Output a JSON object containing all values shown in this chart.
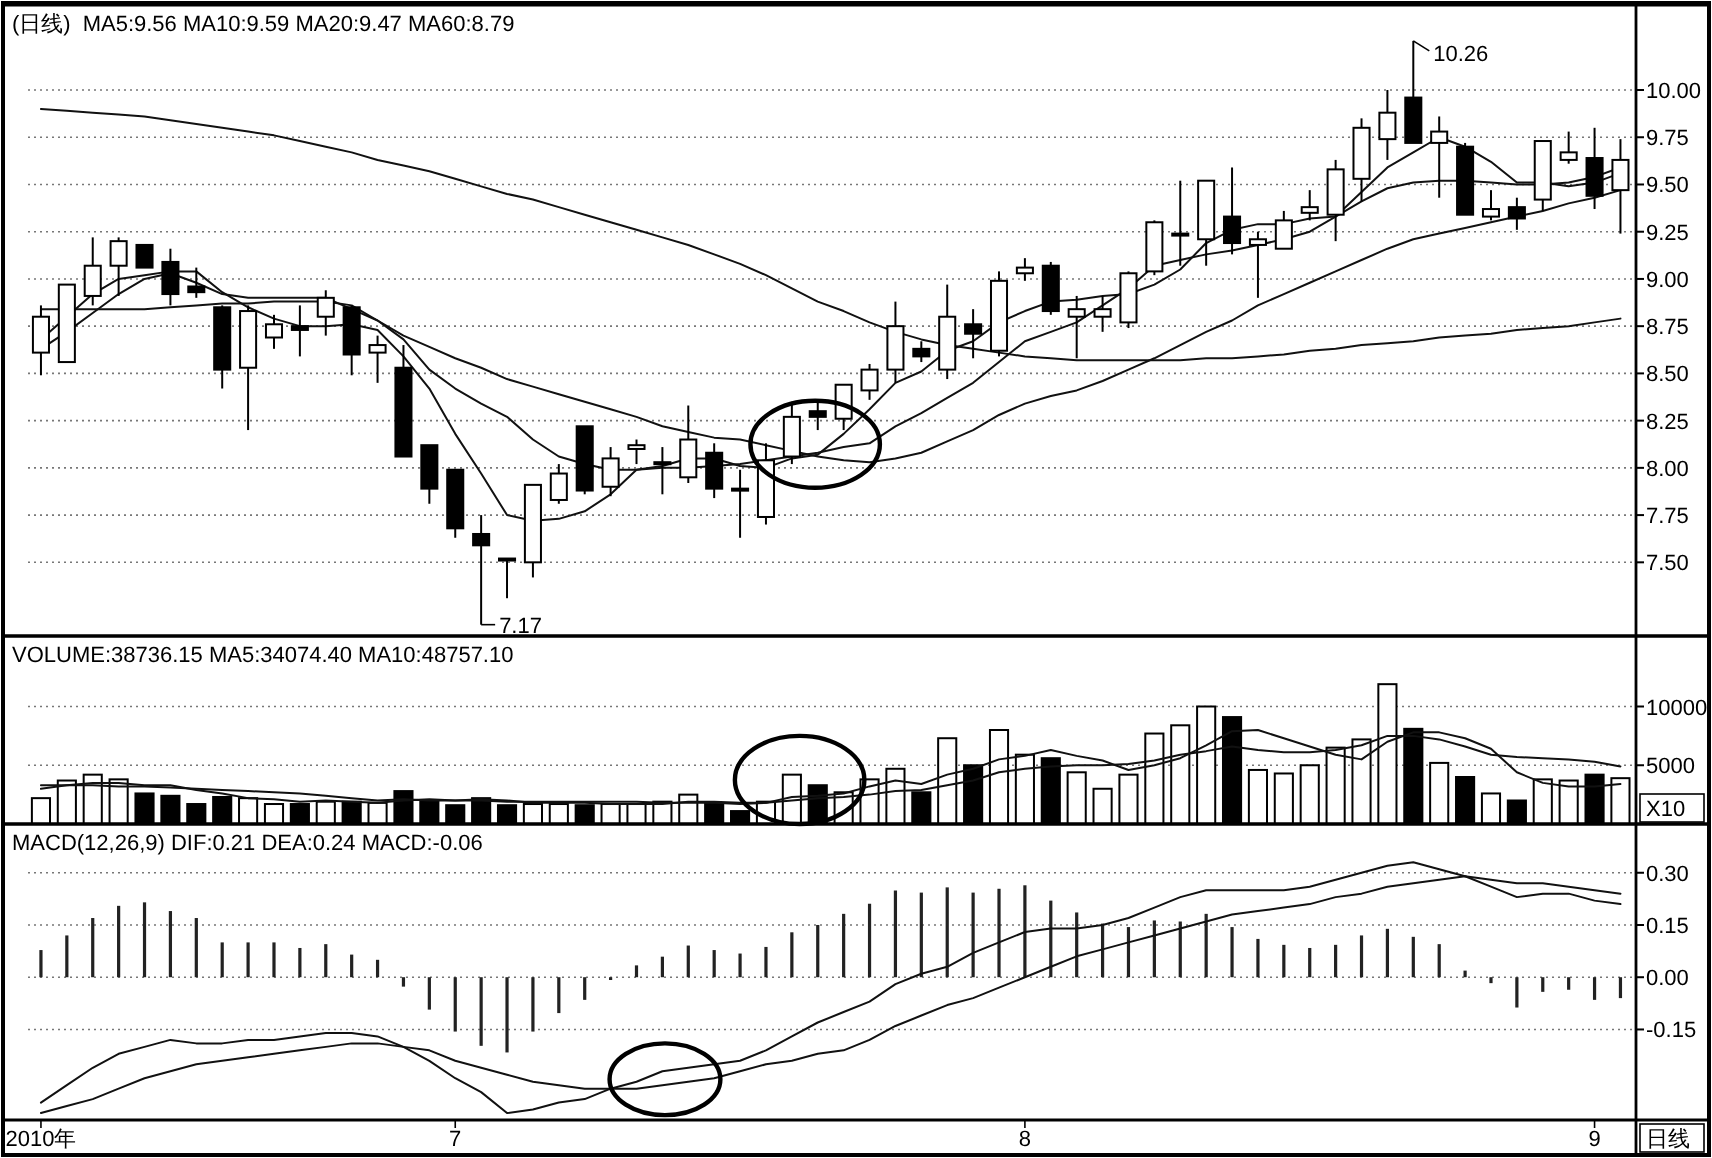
{
  "chart_data": [
    {
      "type": "candlestick",
      "title": "(日线)",
      "subtitle": "MA5:9.56 MA10:9.59 MA20:9.47 MA60:8.79",
      "color": "#000000",
      "categories": [
        null,
        null,
        null,
        null,
        null,
        null,
        null,
        null,
        null,
        null,
        null,
        null,
        null,
        null,
        null,
        null,
        null,
        null,
        null,
        null,
        null,
        null,
        null,
        null,
        null,
        null,
        null,
        null,
        null,
        null,
        null,
        null,
        null,
        null,
        null,
        null,
        null,
        null,
        null,
        null,
        null,
        null,
        null,
        null,
        null,
        null,
        null,
        null,
        null,
        null,
        null,
        null,
        null,
        null,
        null,
        null,
        null,
        null,
        null,
        null,
        null,
        null
      ],
      "ohlc": [
        [
          8.61,
          8.86,
          8.49,
          8.8
        ],
        [
          8.56,
          8.97,
          8.56,
          8.97
        ],
        [
          8.91,
          9.22,
          8.86,
          9.07
        ],
        [
          9.07,
          9.22,
          8.91,
          9.2
        ],
        [
          9.18,
          9.18,
          9.06,
          9.06
        ],
        [
          9.09,
          9.16,
          8.86,
          8.92
        ],
        [
          8.96,
          9.06,
          8.9,
          8.93
        ],
        [
          8.85,
          8.86,
          8.42,
          8.52
        ],
        [
          8.53,
          8.86,
          8.2,
          8.83
        ],
        [
          8.69,
          8.81,
          8.63,
          8.76
        ],
        [
          8.75,
          8.86,
          8.59,
          8.73
        ],
        [
          8.8,
          8.94,
          8.7,
          8.9
        ],
        [
          8.85,
          8.86,
          8.49,
          8.6
        ],
        [
          8.61,
          8.7,
          8.45,
          8.65
        ],
        [
          8.53,
          8.65,
          8.06,
          8.06
        ],
        [
          8.12,
          8.12,
          7.81,
          7.89
        ],
        [
          7.99,
          7.99,
          7.63,
          7.68
        ],
        [
          7.65,
          7.75,
          7.17,
          7.59
        ],
        [
          7.52,
          7.52,
          7.31,
          7.51
        ],
        [
          7.5,
          7.91,
          7.42,
          7.91
        ],
        [
          7.83,
          8.02,
          7.81,
          7.97
        ],
        [
          8.22,
          8.22,
          7.86,
          7.88
        ],
        [
          7.9,
          8.11,
          7.85,
          8.05
        ],
        [
          8.1,
          8.15,
          8.02,
          8.12
        ],
        [
          8.02,
          8.11,
          7.86,
          8.03
        ],
        [
          7.95,
          8.33,
          7.92,
          8.15
        ],
        [
          8.08,
          8.13,
          7.84,
          7.89
        ],
        [
          7.89,
          7.99,
          7.63,
          7.88
        ],
        [
          7.74,
          8.13,
          7.7,
          8.04
        ],
        [
          8.06,
          8.35,
          8.02,
          8.27
        ],
        [
          8.3,
          8.36,
          8.2,
          8.27
        ],
        [
          8.26,
          8.44,
          8.2,
          8.44
        ],
        [
          8.41,
          8.55,
          8.36,
          8.52
        ],
        [
          8.52,
          8.88,
          8.45,
          8.75
        ],
        [
          8.63,
          8.67,
          8.56,
          8.59
        ],
        [
          8.52,
          8.97,
          8.47,
          8.8
        ],
        [
          8.76,
          8.84,
          8.58,
          8.71
        ],
        [
          8.62,
          9.04,
          8.59,
          8.99
        ],
        [
          9.03,
          9.11,
          8.99,
          9.06
        ],
        [
          9.07,
          9.09,
          8.81,
          8.83
        ],
        [
          8.8,
          8.91,
          8.58,
          8.84
        ],
        [
          8.8,
          8.91,
          8.72,
          8.84
        ],
        [
          8.77,
          9.04,
          8.74,
          9.03
        ],
        [
          9.04,
          9.31,
          9.02,
          9.3
        ],
        [
          9.24,
          9.52,
          9.07,
          9.24
        ],
        [
          9.21,
          9.52,
          9.07,
          9.52
        ],
        [
          9.33,
          9.59,
          9.13,
          9.19
        ],
        [
          9.18,
          9.25,
          8.9,
          9.21
        ],
        [
          9.16,
          9.36,
          9.16,
          9.31
        ],
        [
          9.35,
          9.47,
          9.31,
          9.38
        ],
        [
          9.34,
          9.63,
          9.2,
          9.58
        ],
        [
          9.53,
          9.85,
          9.41,
          9.8
        ],
        [
          9.74,
          10.0,
          9.63,
          9.88
        ],
        [
          9.96,
          10.26,
          9.72,
          9.72
        ],
        [
          9.72,
          9.86,
          9.43,
          9.78
        ],
        [
          9.7,
          9.72,
          9.34,
          9.34
        ],
        [
          9.33,
          9.47,
          9.31,
          9.37
        ],
        [
          9.38,
          9.43,
          9.26,
          9.32
        ],
        [
          9.42,
          9.73,
          9.36,
          9.73
        ],
        [
          9.63,
          9.78,
          9.61,
          9.67
        ],
        [
          9.64,
          9.8,
          9.37,
          9.44
        ],
        [
          9.47,
          9.74,
          9.24,
          9.63
        ]
      ],
      "series": [
        {
          "type": "line",
          "color": "#111111",
          "values": [
            8.68,
            8.8,
            8.92,
            9.0,
            9.02,
            9.04,
            9.04,
            8.93,
            8.85,
            8.79,
            8.75,
            8.75,
            8.76,
            8.73,
            8.59,
            8.42,
            8.18,
            7.97,
            7.75,
            7.72,
            7.73,
            7.77,
            7.86,
            7.99,
            8.01,
            8.05,
            8.05,
            8.01,
            8.0,
            8.05,
            8.07,
            8.18,
            8.31,
            8.45,
            8.51,
            8.62,
            8.67,
            8.77,
            8.83,
            8.88,
            8.89,
            8.91,
            8.92,
            8.97,
            9.05,
            9.19,
            9.26,
            9.29,
            9.29,
            9.32,
            9.33,
            9.46,
            9.59,
            9.67,
            9.75,
            9.7,
            9.62,
            9.51,
            9.51,
            9.49,
            9.51,
            9.56
          ]
        },
        {
          "type": "line",
          "color": "#111111",
          "values": [
            8.63,
            8.72,
            8.82,
            8.92,
            9.0,
            9.03,
            8.98,
            8.92,
            8.9,
            8.9,
            8.9,
            8.9,
            8.84,
            8.78,
            8.68,
            8.52,
            8.42,
            8.34,
            8.27,
            8.15,
            8.06,
            8.02,
            7.99,
            7.99,
            8.0,
            8.0,
            8.01,
            8.02,
            8.04,
            8.06,
            8.08,
            8.11,
            8.13,
            8.22,
            8.29,
            8.37,
            8.45,
            8.56,
            8.67,
            8.72,
            8.77,
            8.86,
            8.95,
            9.07,
            9.1,
            9.13,
            9.15,
            9.18,
            9.21,
            9.25,
            9.33,
            9.41,
            9.48,
            9.51,
            9.52,
            9.52,
            9.51,
            9.5,
            9.5,
            9.51,
            9.54,
            9.59
          ]
        },
        {
          "type": "line",
          "color": "#111111",
          "values": [
            8.84,
            8.84,
            8.84,
            8.84,
            8.84,
            8.85,
            8.86,
            8.87,
            8.87,
            8.88,
            8.88,
            8.88,
            8.86,
            8.78,
            8.7,
            8.64,
            8.58,
            8.53,
            8.47,
            8.43,
            8.39,
            8.35,
            8.31,
            8.27,
            8.22,
            8.19,
            8.16,
            8.15,
            8.12,
            8.09,
            8.06,
            8.04,
            8.03,
            8.05,
            8.08,
            8.14,
            8.2,
            8.28,
            8.34,
            8.38,
            8.41,
            8.46,
            8.52,
            8.58,
            8.65,
            8.72,
            8.78,
            8.86,
            8.92,
            8.98,
            9.04,
            9.1,
            9.16,
            9.21,
            9.24,
            9.27,
            9.3,
            9.33,
            9.36,
            9.4,
            9.43,
            9.47
          ]
        },
        {
          "type": "line",
          "color": "#111111",
          "values": [
            9.9,
            9.89,
            9.88,
            9.87,
            9.86,
            9.84,
            9.82,
            9.8,
            9.78,
            9.76,
            9.73,
            9.7,
            9.67,
            9.63,
            9.6,
            9.57,
            9.53,
            9.49,
            9.45,
            9.42,
            9.38,
            9.34,
            9.3,
            9.26,
            9.22,
            9.18,
            9.13,
            9.08,
            9.02,
            8.95,
            8.88,
            8.83,
            8.77,
            8.72,
            8.68,
            8.65,
            8.63,
            8.61,
            8.59,
            8.58,
            8.57,
            8.57,
            8.57,
            8.57,
            8.57,
            8.58,
            8.58,
            8.59,
            8.6,
            8.62,
            8.63,
            8.65,
            8.66,
            8.67,
            8.69,
            8.7,
            8.71,
            8.73,
            8.74,
            8.75,
            8.77,
            8.79
          ]
        }
      ],
      "annotations": [
        "10.26",
        "7.17"
      ],
      "ylim": [
        7.11,
        10.45
      ],
      "yticks": [
        {
          "value": 7.5,
          "label": "7.50"
        },
        {
          "value": 7.75,
          "label": "7.75"
        },
        {
          "value": 8.0,
          "label": "8.00"
        },
        {
          "value": 8.25,
          "label": "8.25"
        },
        {
          "value": 8.5,
          "label": "8.50"
        },
        {
          "value": 8.75,
          "label": "8.75"
        },
        {
          "value": 9.0,
          "label": "9.00"
        },
        {
          "value": 9.25,
          "label": "9.25"
        },
        {
          "value": 9.5,
          "label": "9.50"
        },
        {
          "value": 9.75,
          "label": "9.75"
        },
        {
          "value": 10.0,
          "label": "10.00"
        }
      ],
      "grid": "y",
      "tick_labels": "y"
    },
    {
      "type": "bar",
      "title": "VOLUME:38736.15 MA5:34074.40 MA10:48757.10",
      "categories": [
        null,
        null,
        null,
        null,
        null,
        null,
        null,
        null,
        null,
        null,
        null,
        null,
        null,
        null,
        null,
        null,
        null,
        null,
        null,
        null,
        null,
        null,
        null,
        null,
        null,
        null,
        null,
        null,
        null,
        null,
        null,
        null,
        null,
        null,
        null,
        null,
        null,
        null,
        null,
        null,
        null,
        null,
        null,
        null,
        null,
        null,
        null,
        null,
        null,
        null,
        null,
        null,
        null,
        null,
        null,
        null,
        null,
        null,
        null,
        null,
        null,
        null
      ],
      "series": [
        {
          "type": "bar",
          "color": "#000000",
          "values": [
            2200,
            3700,
            4200,
            3800,
            2600,
            2400,
            1700,
            2300,
            2200,
            1700,
            1700,
            1900,
            1900,
            1800,
            2800,
            1900,
            1600,
            2200,
            1600,
            1700,
            1700,
            1600,
            1700,
            1700,
            1900,
            2500,
            1700,
            1100,
            1900,
            4200,
            3300,
            2700,
            3800,
            4700,
            2700,
            7300,
            5000,
            8000,
            5900,
            5600,
            4400,
            3000,
            4200,
            7700,
            8400,
            10000,
            9100,
            4600,
            4300,
            5000,
            6500,
            7200,
            11900,
            8100,
            5200,
            4000,
            2600,
            2000,
            3800,
            3700,
            4200,
            3900
          ],
          "colors": [
            "#ffffff",
            "#ffffff",
            "#ffffff",
            "#ffffff",
            "#000000",
            "#000000",
            "#000000",
            "#000000",
            "#ffffff",
            "#ffffff",
            "#000000",
            "#ffffff",
            "#000000",
            "#ffffff",
            "#000000",
            "#000000",
            "#000000",
            "#000000",
            "#000000",
            "#ffffff",
            "#ffffff",
            "#000000",
            "#ffffff",
            "#ffffff",
            "#ffffff",
            "#ffffff",
            "#000000",
            "#000000",
            "#ffffff",
            "#ffffff",
            "#000000",
            "#ffffff",
            "#ffffff",
            "#ffffff",
            "#000000",
            "#ffffff",
            "#000000",
            "#ffffff",
            "#ffffff",
            "#000000",
            "#ffffff",
            "#ffffff",
            "#ffffff",
            "#ffffff",
            "#ffffff",
            "#ffffff",
            "#000000",
            "#ffffff",
            "#ffffff",
            "#ffffff",
            "#ffffff",
            "#ffffff",
            "#ffffff",
            "#000000",
            "#ffffff",
            "#000000",
            "#ffffff",
            "#000000",
            "#ffffff",
            "#ffffff",
            "#000000",
            "#ffffff"
          ]
        },
        {
          "type": "line",
          "color": "#111111",
          "values": [
            3000,
            3300,
            3500,
            3500,
            3300,
            3300,
            2900,
            2600,
            2200,
            2100,
            1900,
            2000,
            1900,
            1800,
            2000,
            2100,
            2000,
            2100,
            2000,
            1800,
            1800,
            1800,
            1700,
            1700,
            1700,
            1900,
            1900,
            1800,
            1800,
            2300,
            2400,
            2600,
            3200,
            3700,
            3400,
            4200,
            4700,
            5500,
            5800,
            6300,
            5800,
            5400,
            4600,
            5000,
            5600,
            6700,
            7900,
            8000,
            7300,
            6600,
            5900,
            5500,
            7000,
            7800,
            7800,
            7300,
            6400,
            4400,
            3500,
            3200,
            3200,
            3400
          ]
        },
        {
          "type": "line",
          "color": "#111111",
          "values": [
            3300,
            3300,
            3300,
            3200,
            3200,
            3100,
            3000,
            2900,
            2800,
            2700,
            2600,
            2400,
            2200,
            2000,
            2100,
            2000,
            2000,
            2000,
            1900,
            1900,
            1900,
            1900,
            1900,
            1900,
            1800,
            1800,
            1800,
            1700,
            1800,
            2000,
            2200,
            2300,
            2500,
            2800,
            2900,
            3300,
            3700,
            4400,
            4700,
            4900,
            5000,
            5000,
            5100,
            5400,
            5900,
            6200,
            6600,
            6300,
            6100,
            6100,
            6300,
            6700,
            7500,
            7500,
            7200,
            6600,
            5900,
            5700,
            5600,
            5500,
            5300,
            4900
          ]
        }
      ],
      "annotations": [
        "X10"
      ],
      "ylim": [
        0,
        16000
      ],
      "yticks": [
        5000,
        10000
      ],
      "grid": "y",
      "tick_labels": "y"
    },
    {
      "type": "bar",
      "title": "MACD(12,26,9) DIF:0.21 DEA:0.24 MACD:-0.06",
      "categories": [
        "2010年",
        null,
        null,
        null,
        null,
        null,
        null,
        null,
        null,
        null,
        null,
        null,
        null,
        null,
        null,
        null,
        "7",
        null,
        null,
        null,
        null,
        null,
        null,
        null,
        null,
        null,
        null,
        null,
        null,
        null,
        null,
        null,
        null,
        null,
        null,
        null,
        null,
        null,
        "8",
        null,
        null,
        null,
        null,
        null,
        null,
        null,
        null,
        null,
        null,
        null,
        null,
        null,
        null,
        null,
        null,
        null,
        null,
        null,
        null,
        null,
        "9",
        null
      ],
      "series": [
        {
          "type": "bar",
          "color": "#222222",
          "values": [
            0.078,
            0.12,
            0.17,
            0.205,
            0.215,
            0.19,
            0.17,
            0.1,
            0.1,
            0.1,
            0.084,
            0.095,
            0.065,
            0.05,
            -0.027,
            -0.093,
            -0.156,
            -0.197,
            -0.216,
            -0.156,
            -0.103,
            -0.065,
            -0.008,
            0.034,
            0.059,
            0.091,
            0.078,
            0.068,
            0.087,
            0.129,
            0.15,
            0.182,
            0.211,
            0.249,
            0.243,
            0.258,
            0.243,
            0.254,
            0.264,
            0.22,
            0.186,
            0.154,
            0.144,
            0.163,
            0.16,
            0.182,
            0.144,
            0.11,
            0.093,
            0.084,
            0.093,
            0.12,
            0.139,
            0.116,
            0.095,
            0.019,
            -0.017,
            -0.087,
            -0.042,
            -0.036,
            -0.065,
            -0.06
          ]
        },
        {
          "type": "line",
          "color": "#111111",
          "values": [
            -0.36,
            -0.31,
            -0.26,
            -0.22,
            -0.2,
            -0.18,
            -0.19,
            -0.19,
            -0.18,
            -0.18,
            -0.17,
            -0.16,
            -0.16,
            -0.17,
            -0.2,
            -0.24,
            -0.29,
            -0.33,
            -0.39,
            -0.38,
            -0.36,
            -0.35,
            -0.32,
            -0.3,
            -0.27,
            -0.26,
            -0.25,
            -0.24,
            -0.21,
            -0.17,
            -0.13,
            -0.1,
            -0.07,
            -0.02,
            0.01,
            0.03,
            0.07,
            0.1,
            0.13,
            0.14,
            0.14,
            0.15,
            0.17,
            0.2,
            0.23,
            0.25,
            0.25,
            0.25,
            0.25,
            0.26,
            0.28,
            0.3,
            0.32,
            0.33,
            0.31,
            0.29,
            0.26,
            0.23,
            0.24,
            0.24,
            0.22,
            0.21
          ]
        },
        {
          "type": "line",
          "color": "#111111",
          "values": [
            -0.39,
            -0.37,
            -0.35,
            -0.32,
            -0.29,
            -0.27,
            -0.25,
            -0.24,
            -0.23,
            -0.22,
            -0.21,
            -0.2,
            -0.19,
            -0.19,
            -0.2,
            -0.21,
            -0.24,
            -0.26,
            -0.28,
            -0.3,
            -0.31,
            -0.32,
            -0.32,
            -0.32,
            -0.31,
            -0.3,
            -0.29,
            -0.27,
            -0.25,
            -0.24,
            -0.22,
            -0.21,
            -0.18,
            -0.14,
            -0.11,
            -0.08,
            -0.06,
            -0.03,
            0.0,
            0.03,
            0.06,
            0.08,
            0.1,
            0.12,
            0.14,
            0.16,
            0.18,
            0.19,
            0.2,
            0.21,
            0.23,
            0.24,
            0.26,
            0.27,
            0.28,
            0.29,
            0.28,
            0.27,
            0.27,
            0.26,
            0.25,
            0.24
          ]
        }
      ],
      "annotations": [
        "日线"
      ],
      "ylim": [
        -0.41,
        0.44
      ],
      "yticks": [
        {
          "value": -0.15,
          "label": "-0.15"
        },
        {
          "value": 0,
          "label": "0.00"
        },
        {
          "value": 0.15,
          "label": "0.15"
        },
        {
          "value": 0.3,
          "label": "0.30"
        }
      ],
      "grid": "y"
    }
  ]
}
